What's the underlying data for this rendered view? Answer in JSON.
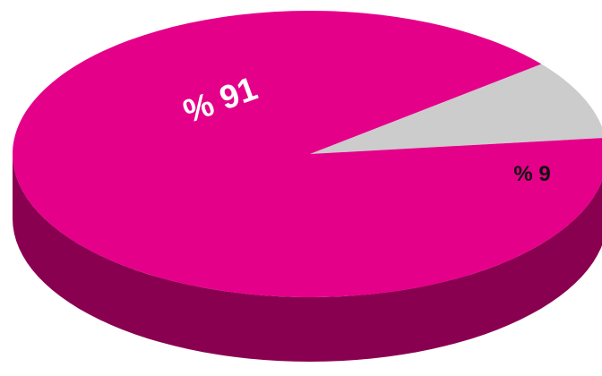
{
  "chart_data": {
    "type": "pie",
    "style": "3d",
    "slices": [
      {
        "label": "% 91",
        "value": 91,
        "color": "#e5008a",
        "side_color": "#8a0050"
      },
      {
        "label": "% 9",
        "value": 9,
        "color": "#cccccc",
        "side_color": "#8f8f8f"
      }
    ],
    "legend": "none"
  }
}
